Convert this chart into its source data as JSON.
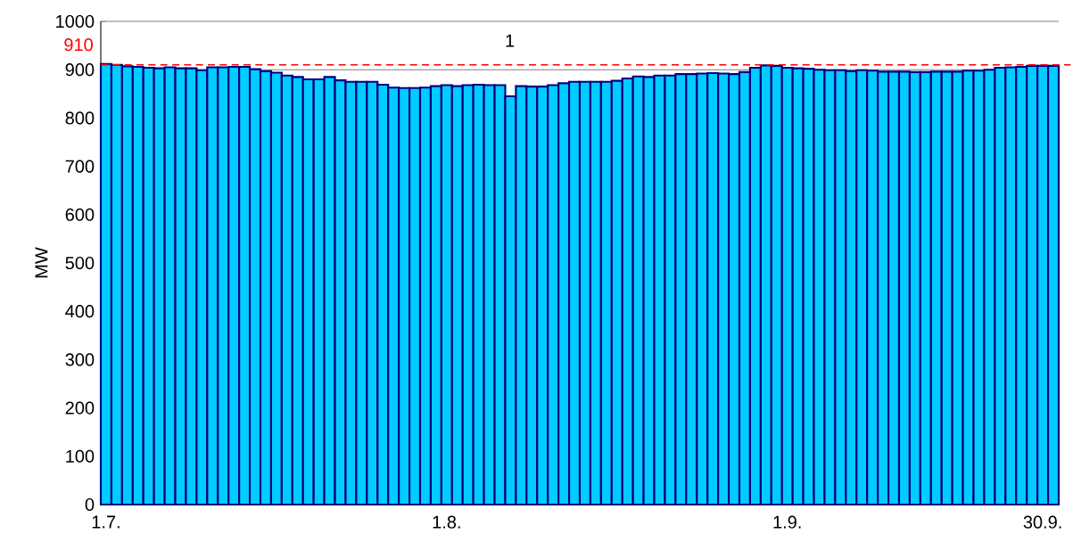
{
  "chart_data": {
    "type": "bar",
    "ylabel": "MW",
    "categories": [
      "1.7.",
      null,
      null,
      null,
      null,
      null,
      null,
      null,
      null,
      null,
      null,
      null,
      null,
      null,
      null,
      null,
      null,
      null,
      null,
      null,
      null,
      null,
      null,
      null,
      null,
      null,
      null,
      null,
      null,
      null,
      null,
      null,
      "1.8.",
      null,
      null,
      null,
      null,
      null,
      null,
      null,
      null,
      null,
      null,
      null,
      null,
      null,
      null,
      null,
      null,
      null,
      null,
      null,
      null,
      null,
      null,
      null,
      null,
      null,
      null,
      null,
      null,
      null,
      null,
      null,
      "1.9.",
      null,
      null,
      null,
      null,
      null,
      null,
      null,
      null,
      null,
      null,
      null,
      null,
      null,
      null,
      null,
      null,
      null,
      null,
      null,
      null,
      null,
      null,
      null,
      "30.9.",
      null
    ],
    "values": [
      912,
      910,
      907,
      906,
      904,
      903,
      905,
      903,
      903,
      899,
      905,
      905,
      906,
      906,
      901,
      897,
      894,
      888,
      885,
      880,
      880,
      885,
      878,
      875,
      875,
      875,
      869,
      863,
      862,
      862,
      863,
      866,
      868,
      866,
      868,
      869,
      868,
      868,
      845,
      866,
      865,
      865,
      868,
      872,
      875,
      875,
      875,
      875,
      877,
      882,
      886,
      885,
      888,
      888,
      891,
      891,
      892,
      893,
      892,
      891,
      895,
      904,
      909,
      908,
      904,
      903,
      902,
      900,
      899,
      899,
      897,
      899,
      898,
      896,
      896,
      896,
      895,
      895,
      896,
      896,
      896,
      898,
      898,
      900,
      904,
      905,
      906,
      908,
      908,
      908
    ],
    "color": "#00ccff",
    "ylim": [
      0,
      1000
    ],
    "yticks": [
      0,
      100,
      200,
      300,
      400,
      500,
      600,
      700,
      800,
      900,
      1000
    ],
    "grid": "y",
    "ref_lines": [
      {
        "axis": "y",
        "value": 910,
        "label": "910",
        "color": "#ff0000",
        "line_style": "dashed"
      }
    ],
    "annotations": [
      "1"
    ]
  }
}
